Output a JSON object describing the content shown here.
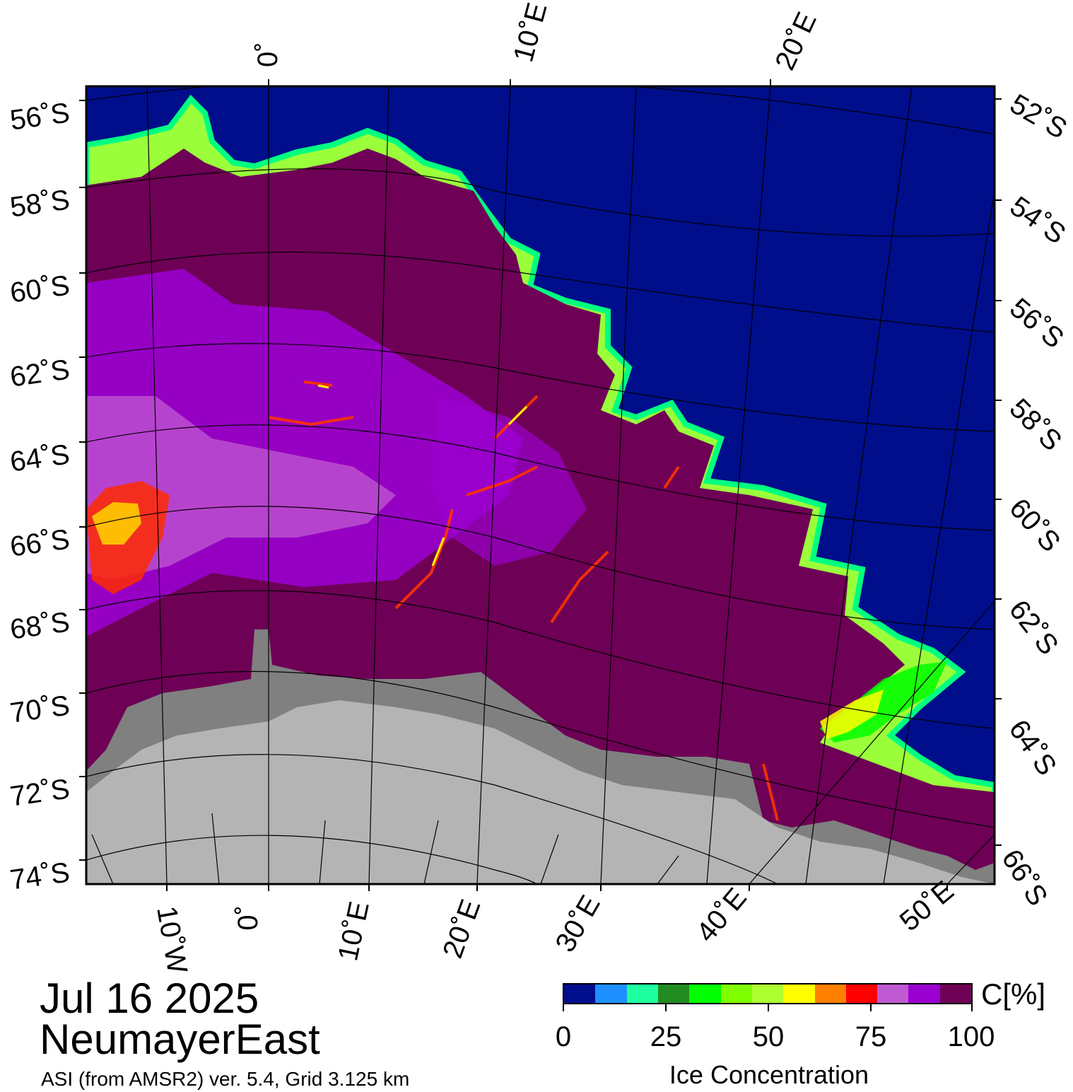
{
  "map": {
    "top_labels": [
      "0˚",
      "10˚E",
      "20˚E"
    ],
    "left_labels": [
      "56˚S",
      "58˚S",
      "60˚S",
      "62˚S",
      "64˚S",
      "66˚S",
      "68˚S",
      "70˚S",
      "72˚S",
      "74˚S"
    ],
    "right_labels": [
      "52˚S",
      "54˚S",
      "56˚S",
      "58˚S",
      "60˚S",
      "62˚S",
      "64˚S",
      "66˚S"
    ],
    "bottom_labels": [
      "10˚W",
      "0˚",
      "10˚E",
      "20˚E",
      "30˚E",
      "40˚E",
      "50˚E"
    ],
    "colors": {
      "open_water": "#000e8c",
      "ice_full": "#6e0055",
      "ice_high": "#9a00cf",
      "land_ice_shelf": "#808080",
      "land": "#b4b4b4",
      "edge_yellow": "#ffff00",
      "edge_green": "#00ff00",
      "edge_red": "#ff0000"
    }
  },
  "footer": {
    "date": "Jul 16 2025",
    "region": "NeumayerEast",
    "source": "ASI (from AMSR2) ver. 5.4,  Grid 3.125 km"
  },
  "legend": {
    "unit": "C[%]",
    "title": "Ice Concentration",
    "ticks": [
      "0",
      "25",
      "50",
      "75",
      "100"
    ],
    "colors": [
      "#000e8c",
      "#1e90ff",
      "#1effa0",
      "#228b22",
      "#00ff00",
      "#7fff00",
      "#adff2f",
      "#ffff00",
      "#ff7f00",
      "#ff0000",
      "#c05ad2",
      "#9a00cf",
      "#6e0055"
    ]
  }
}
